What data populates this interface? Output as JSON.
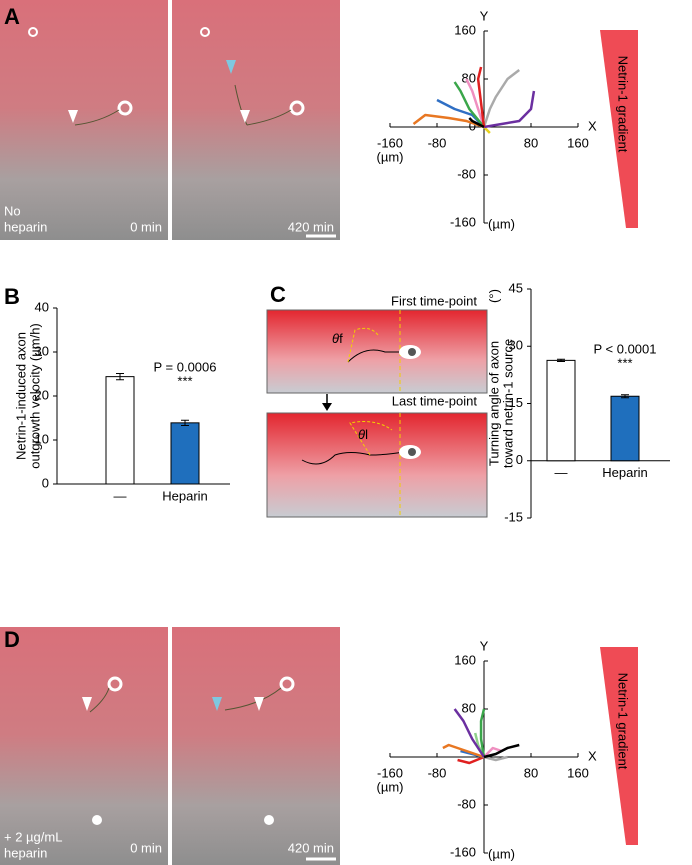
{
  "figure": {
    "panels": [
      "A",
      "B",
      "C",
      "D"
    ],
    "a_condition": [
      "No",
      "heparin"
    ],
    "d_condition": [
      "+ 2 µg/mL",
      "heparin"
    ],
    "time_start": "0 min",
    "time_end": "420 min",
    "diagram": {
      "first": "First time-point",
      "last": "Last time-point",
      "theta": "θ",
      "f": "f",
      "l": "l"
    }
  },
  "chart_data": [
    {
      "type": "line",
      "xlabel": "X",
      "ylabel": "Y",
      "x_unit_label": "(µm)",
      "y_unit_label": "(µm)",
      "gradient_label": "Netrin-1 gradient",
      "xlim": [
        -160,
        160
      ],
      "ylim": [
        -160,
        160
      ],
      "xticks": [
        -160,
        -80,
        80,
        160
      ],
      "yticks": [
        -160,
        -80,
        0,
        80,
        160
      ],
      "series": [
        {
          "color": "#e8d21a",
          "x": [
            0,
            5,
            10
          ],
          "y": [
            0,
            -5,
            -10
          ]
        },
        {
          "color": "#e87722",
          "x": [
            0,
            -30,
            -60,
            -100,
            -120
          ],
          "y": [
            0,
            10,
            15,
            20,
            5
          ]
        },
        {
          "color": "#2f6fc4",
          "x": [
            0,
            -20,
            -50,
            -80
          ],
          "y": [
            0,
            20,
            30,
            45
          ]
        },
        {
          "color": "#ef8fc0",
          "x": [
            0,
            -10,
            -20,
            -30
          ],
          "y": [
            0,
            30,
            60,
            80
          ]
        },
        {
          "color": "#3aa64a",
          "x": [
            0,
            -25,
            -40,
            -50
          ],
          "y": [
            0,
            30,
            60,
            75
          ]
        },
        {
          "color": "#aaaaaa",
          "x": [
            0,
            10,
            20,
            40,
            60
          ],
          "y": [
            0,
            30,
            50,
            80,
            95
          ]
        },
        {
          "color": "#6b2fa0",
          "x": [
            0,
            30,
            60,
            80,
            85
          ],
          "y": [
            0,
            5,
            10,
            30,
            60
          ]
        },
        {
          "color": "#e02020",
          "x": [
            0,
            -5,
            -10,
            -5
          ],
          "y": [
            0,
            40,
            80,
            100
          ]
        },
        {
          "color": "#000000",
          "x": [
            0,
            -10,
            -20,
            -25
          ],
          "y": [
            0,
            5,
            10,
            15
          ]
        }
      ]
    },
    {
      "type": "bar",
      "categories": [
        "—",
        "Heparin"
      ],
      "values": [
        24.4,
        13.9
      ],
      "errors": [
        0.7,
        0.6
      ],
      "colors": [
        "#ffffff",
        "#1f6fbd"
      ],
      "ylabel": [
        "Netrin-1-induced axon",
        "outgrowth velocity (µm/h)"
      ],
      "annotations": [
        "P = 0.0006",
        "***"
      ],
      "ylim": [
        0,
        40
      ],
      "yticks": [
        0,
        10,
        20,
        30,
        40
      ]
    },
    {
      "type": "bar",
      "categories": [
        "—",
        "Heparin"
      ],
      "values": [
        26.3,
        16.9
      ],
      "errors": [
        0.3,
        0.4
      ],
      "colors": [
        "#ffffff",
        "#1f6fbd"
      ],
      "ylabel": [
        "Turning angle of axon",
        "toward netrin-1 source"
      ],
      "ylabel_unit": "(°)",
      "annotations": [
        "P < 0.0001",
        "***"
      ],
      "ylim": [
        -15,
        45
      ],
      "yticks": [
        -15,
        0,
        15,
        30,
        45
      ]
    },
    {
      "type": "line",
      "xlabel": "X",
      "ylabel": "Y",
      "x_unit_label": "(µm)",
      "y_unit_label": "(µm)",
      "gradient_label": "Netrin-1 gradient",
      "xlim": [
        -160,
        160
      ],
      "ylim": [
        -160,
        160
      ],
      "xticks": [
        -160,
        -80,
        80,
        160
      ],
      "yticks": [
        -160,
        -80,
        80,
        160
      ],
      "series": [
        {
          "color": "#e02020",
          "x": [
            0,
            -25,
            -45
          ],
          "y": [
            0,
            -10,
            -5
          ]
        },
        {
          "color": "#2f6fc4",
          "x": [
            0,
            -20,
            -40
          ],
          "y": [
            0,
            5,
            10
          ]
        },
        {
          "color": "#ef8fc0",
          "x": [
            0,
            15,
            30
          ],
          "y": [
            0,
            15,
            10
          ]
        },
        {
          "color": "#e87722",
          "x": [
            0,
            -30,
            -60,
            -70
          ],
          "y": [
            0,
            10,
            20,
            15
          ]
        },
        {
          "color": "#8fd08a",
          "x": [
            0,
            -10,
            -15
          ],
          "y": [
            0,
            20,
            40
          ]
        },
        {
          "color": "#3aa64a",
          "x": [
            0,
            -5,
            -5,
            0
          ],
          "y": [
            0,
            30,
            60,
            80
          ]
        },
        {
          "color": "#6b2fa0",
          "x": [
            0,
            -20,
            -35,
            -50
          ],
          "y": [
            0,
            30,
            60,
            80
          ]
        },
        {
          "color": "#aaaaaa",
          "x": [
            0,
            20,
            40
          ],
          "y": [
            0,
            -5,
            0
          ]
        },
        {
          "color": "#000000",
          "x": [
            0,
            20,
            40,
            60
          ],
          "y": [
            0,
            5,
            15,
            20
          ]
        }
      ]
    }
  ]
}
